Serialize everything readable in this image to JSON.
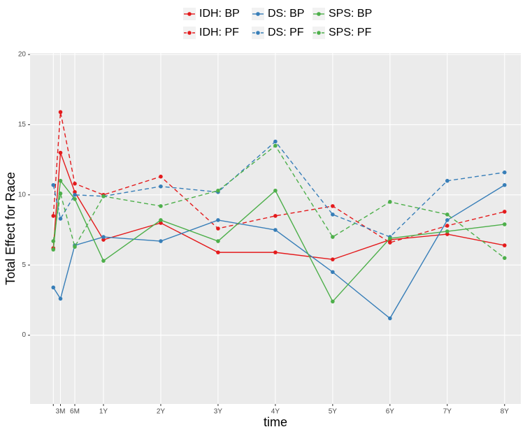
{
  "chart_data": {
    "type": "line",
    "x_label": "time",
    "y_label": "Total Effect for Race",
    "x": [
      1.5,
      3,
      6,
      12,
      24,
      36,
      48,
      60,
      72,
      84,
      96
    ],
    "xlim": [
      -3.37,
      99.4
    ],
    "xticks": [
      {
        "value": 1.5,
        "label": null
      },
      {
        "value": 3,
        "label": "3M"
      },
      {
        "value": 6,
        "label": "6M"
      },
      {
        "value": 12,
        "label": "1Y"
      },
      {
        "value": 24,
        "label": "2Y"
      },
      {
        "value": 36,
        "label": "3Y"
      },
      {
        "value": 48,
        "label": "4Y"
      },
      {
        "value": 60,
        "label": "5Y"
      },
      {
        "value": 72,
        "label": "6Y"
      },
      {
        "value": 84,
        "label": "7Y"
      },
      {
        "value": 96,
        "label": "8Y"
      }
    ],
    "ylim": [
      -4.9,
      20.1
    ],
    "yticks": [
      0,
      5,
      10,
      15,
      20
    ],
    "grid": true,
    "legend": "top",
    "series": [
      {
        "name": "IDH: BP",
        "color": "#E41A1C",
        "dash": false,
        "values": [
          6.2,
          13.0,
          10.2,
          6.8,
          8.0,
          5.9,
          5.9,
          5.4,
          6.8,
          7.2,
          6.4
        ]
      },
      {
        "name": "IDH: PF",
        "color": "#E41A1C",
        "dash": true,
        "values": [
          8.5,
          15.9,
          10.8,
          10.0,
          11.3,
          7.6,
          8.5,
          9.2,
          6.6,
          7.8,
          8.8
        ]
      },
      {
        "name": "DS: BP",
        "color": "#377EB8",
        "dash": false,
        "values": [
          3.4,
          2.6,
          6.4,
          7.0,
          6.7,
          8.2,
          7.5,
          4.5,
          1.2,
          8.2,
          10.7
        ]
      },
      {
        "name": "DS: PF",
        "color": "#377EB8",
        "dash": true,
        "values": [
          10.7,
          8.3,
          10.0,
          9.9,
          10.6,
          10.2,
          13.8,
          8.6,
          7.0,
          11.0,
          11.6
        ]
      },
      {
        "name": "SPS: BP",
        "color": "#4DAF4A",
        "dash": false,
        "values": [
          6.1,
          11.0,
          9.7,
          5.3,
          8.2,
          6.7,
          10.3,
          2.4,
          6.9,
          7.4,
          7.9
        ]
      },
      {
        "name": "SPS: PF",
        "color": "#4DAF4A",
        "dash": true,
        "values": [
          6.7,
          10.1,
          6.3,
          9.9,
          9.2,
          10.3,
          13.5,
          7.0,
          9.5,
          8.6,
          5.5
        ]
      }
    ]
  }
}
